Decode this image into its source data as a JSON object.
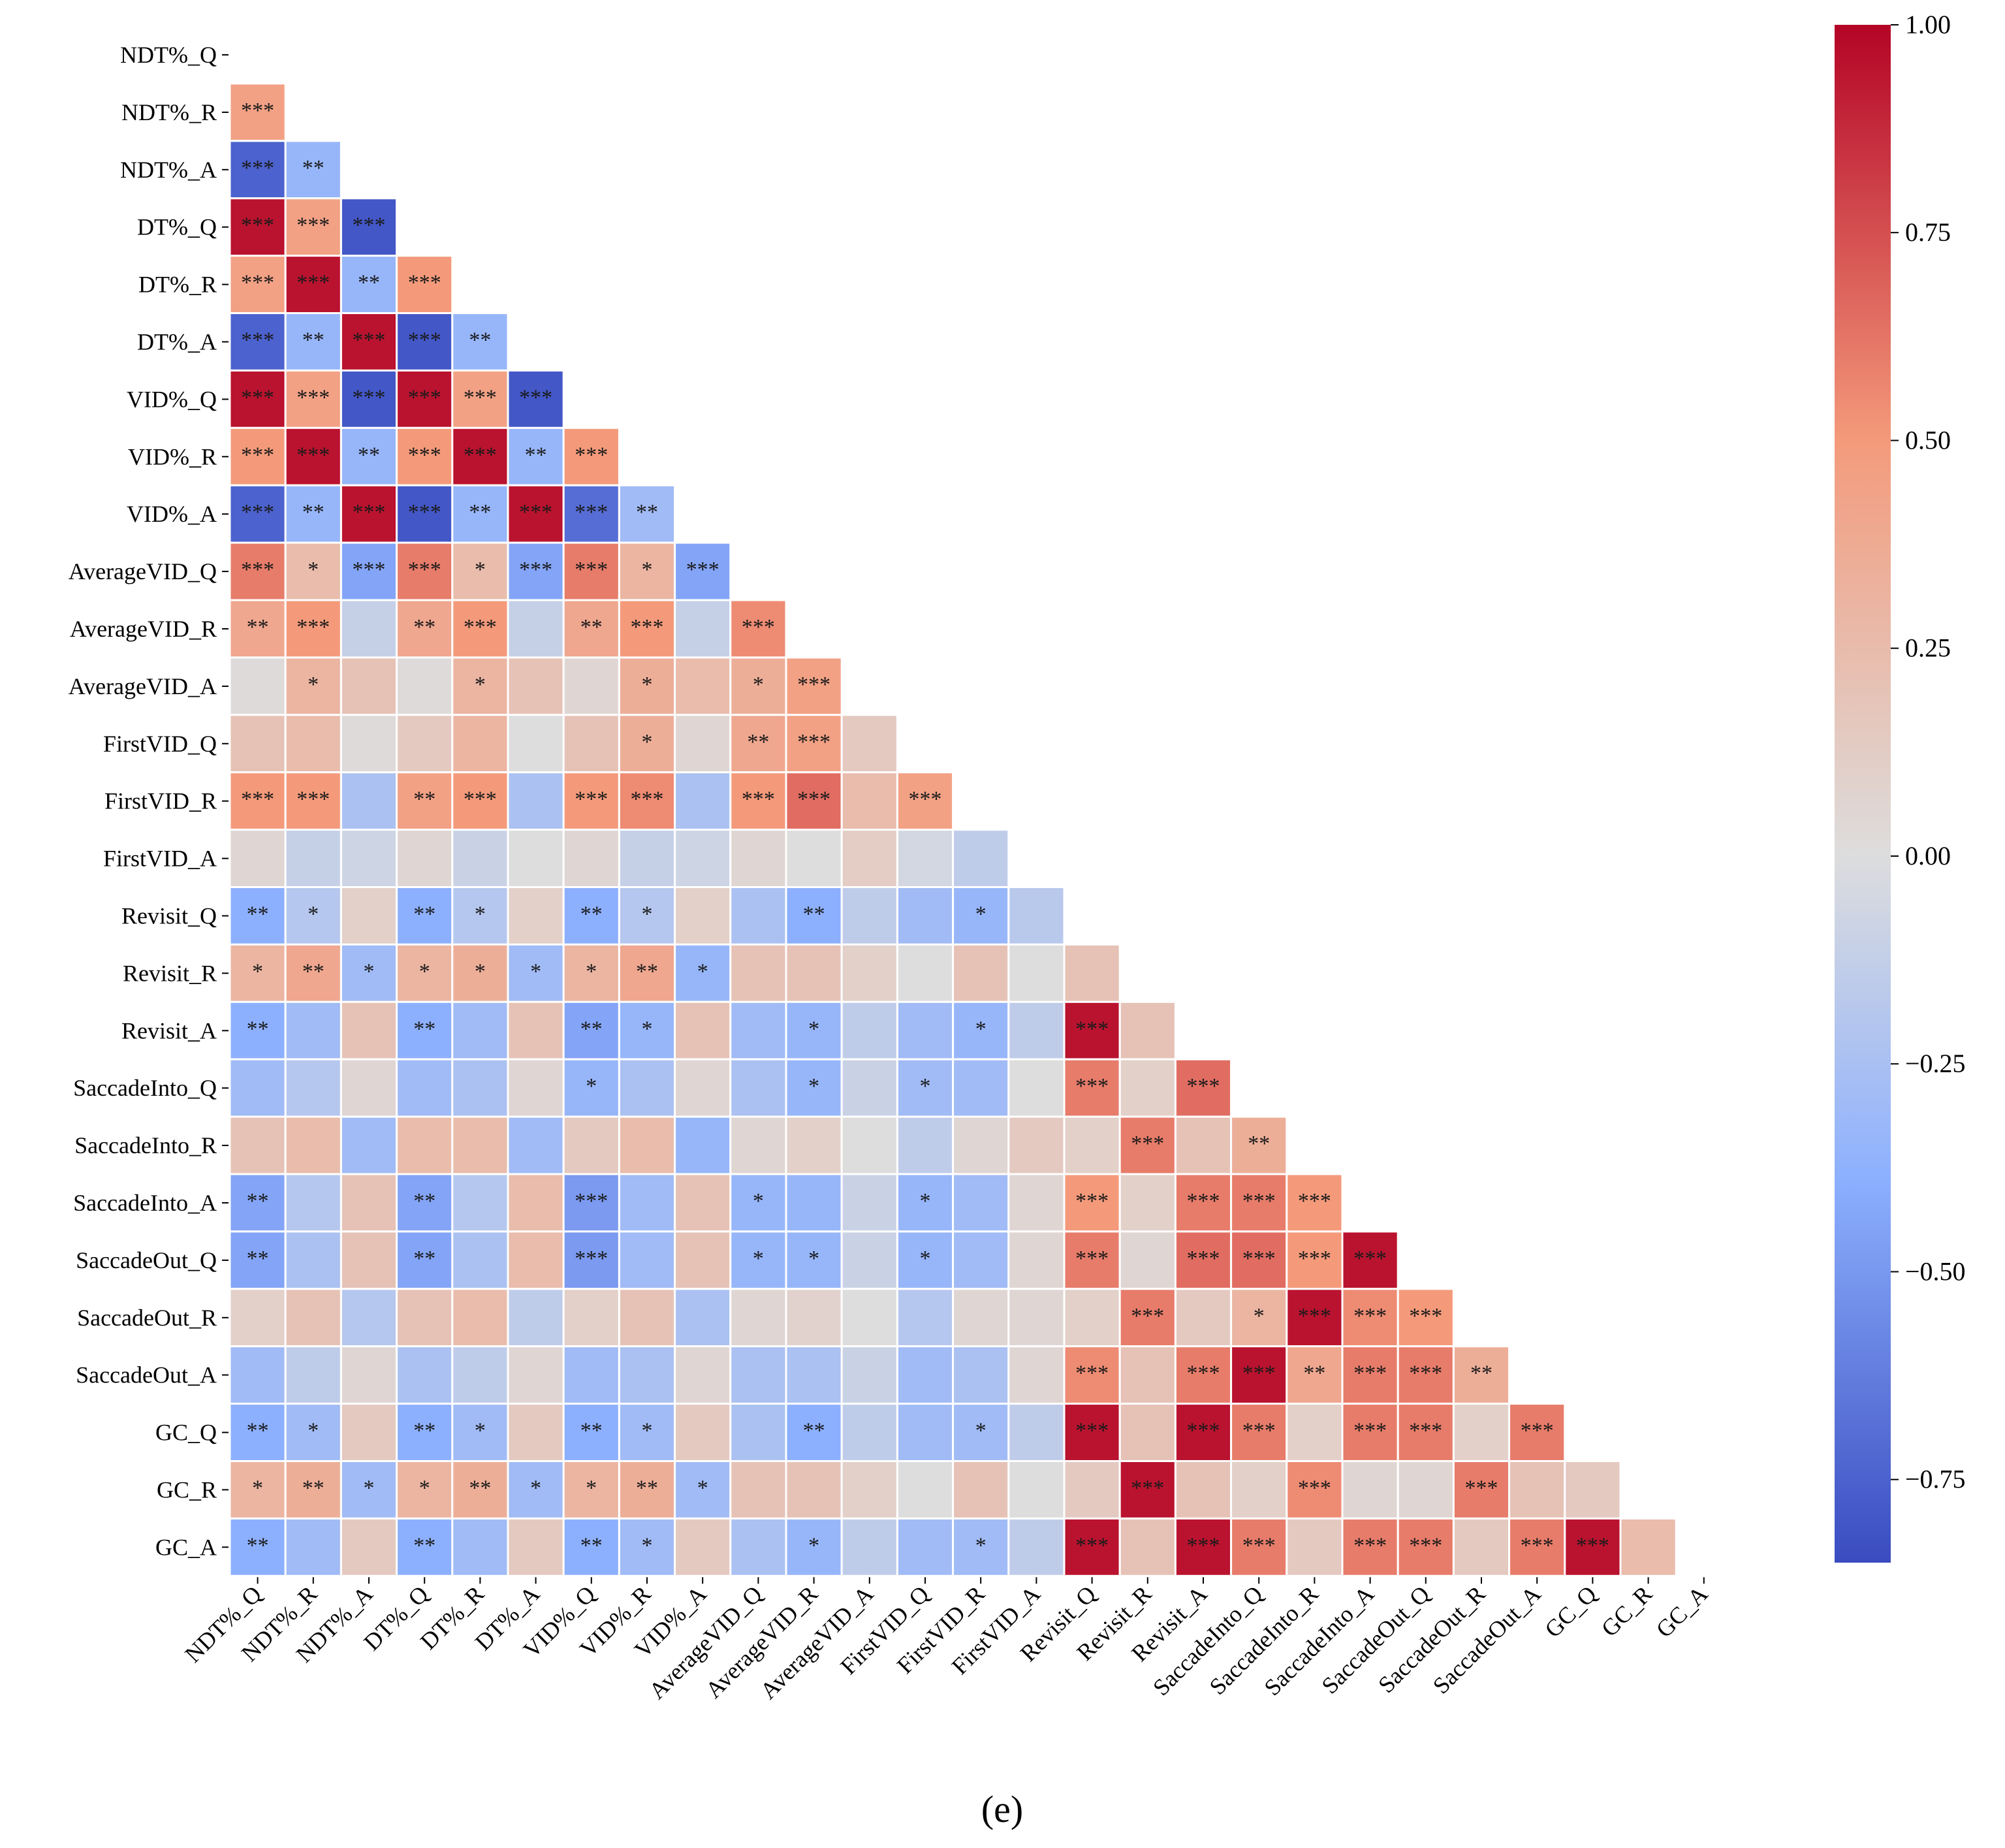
{
  "chart_data": {
    "type": "heatmap",
    "title": "",
    "caption": "(e)",
    "labels": [
      "NDT%_Q",
      "NDT%_R",
      "NDT%_A",
      "DT%_Q",
      "DT%_R",
      "DT%_A",
      "VID%_Q",
      "VID%_R",
      "VID%_A",
      "AverageVID_Q",
      "AverageVID_R",
      "AverageVID_A",
      "FirstVID_Q",
      "FirstVID_R",
      "FirstVID_A",
      "Revisit_Q",
      "Revisit_R",
      "Revisit_A",
      "SaccadeInto_Q",
      "SaccadeInto_R",
      "SaccadeInto_A",
      "SaccadeOut_Q",
      "SaccadeOut_R",
      "SaccadeOut_A",
      "GC_Q",
      "GC_R",
      "GC_A"
    ],
    "colorbar": {
      "vmin": -0.85,
      "vmax": 1.0,
      "ticks": [
        1.0,
        0.75,
        0.5,
        0.25,
        0.0,
        -0.25,
        -0.5,
        -0.75
      ],
      "tick_labels": [
        "1.00",
        "0.75",
        "0.50",
        "0.25",
        "0.00",
        "−0.25",
        "−0.50",
        "−0.75"
      ],
      "colors": [
        "#3a4cc0",
        "#8db0fe",
        "#dddddd",
        "#f49a7b",
        "#b40426"
      ]
    },
    "lower_triangle_values": [
      [],
      [
        0.45
      ],
      [
        -0.75,
        -0.35
      ],
      [
        0.95,
        0.45,
        -0.8
      ],
      [
        0.45,
        0.95,
        -0.35,
        0.5
      ],
      [
        -0.75,
        -0.35,
        0.95,
        -0.8,
        -0.35
      ],
      [
        0.95,
        0.45,
        -0.8,
        0.95,
        0.45,
        -0.8
      ],
      [
        0.5,
        0.95,
        -0.35,
        0.5,
        0.95,
        -0.35,
        0.5
      ],
      [
        -0.75,
        -0.35,
        0.95,
        -0.8,
        -0.35,
        0.95,
        -0.7,
        -0.3
      ],
      [
        0.6,
        0.25,
        -0.45,
        0.6,
        0.25,
        -0.45,
        0.6,
        0.3,
        -0.45
      ],
      [
        0.4,
        0.5,
        -0.12,
        0.4,
        0.5,
        -0.12,
        0.4,
        0.5,
        -0.12,
        0.55
      ],
      [
        0.02,
        0.3,
        0.2,
        0.02,
        0.3,
        0.2,
        0.05,
        0.35,
        0.25,
        0.35,
        0.45
      ],
      [
        0.2,
        0.25,
        0.02,
        0.15,
        0.3,
        0.0,
        0.2,
        0.35,
        0.05,
        0.4,
        0.45,
        0.15
      ],
      [
        0.5,
        0.5,
        -0.25,
        0.45,
        0.5,
        -0.25,
        0.5,
        0.55,
        -0.25,
        0.5,
        0.65,
        0.25,
        0.45
      ],
      [
        0.05,
        -0.12,
        -0.08,
        0.05,
        -0.1,
        0.0,
        0.05,
        -0.12,
        -0.08,
        0.05,
        0.0,
        0.12,
        -0.05,
        -0.15
      ],
      [
        -0.4,
        -0.2,
        0.1,
        -0.4,
        -0.2,
        0.1,
        -0.4,
        -0.2,
        0.1,
        -0.25,
        -0.4,
        -0.15,
        -0.3,
        -0.35,
        -0.18
      ],
      [
        0.3,
        0.4,
        -0.3,
        0.3,
        0.35,
        -0.3,
        0.3,
        0.4,
        -0.35,
        0.2,
        0.2,
        0.1,
        0.0,
        0.2,
        0.0,
        0.2
      ],
      [
        -0.4,
        -0.3,
        0.2,
        -0.4,
        -0.3,
        0.2,
        -0.45,
        -0.35,
        0.2,
        -0.3,
        -0.35,
        -0.15,
        -0.3,
        -0.35,
        -0.15,
        0.95,
        0.2
      ],
      [
        -0.3,
        -0.2,
        0.05,
        -0.3,
        -0.25,
        0.05,
        -0.35,
        -0.25,
        0.05,
        -0.25,
        -0.35,
        -0.1,
        -0.3,
        -0.3,
        0.0,
        0.6,
        0.1,
        0.65
      ],
      [
        0.2,
        0.25,
        -0.3,
        0.25,
        0.25,
        -0.3,
        0.15,
        0.25,
        -0.35,
        0.05,
        0.1,
        0.0,
        -0.15,
        0.05,
        0.15,
        0.1,
        0.6,
        0.2,
        0.35
      ],
      [
        -0.45,
        -0.2,
        0.2,
        -0.45,
        -0.2,
        0.25,
        -0.5,
        -0.3,
        0.2,
        -0.35,
        -0.35,
        -0.1,
        -0.35,
        -0.3,
        0.05,
        0.5,
        0.1,
        0.6,
        0.6,
        0.5
      ],
      [
        -0.45,
        -0.25,
        0.2,
        -0.45,
        -0.25,
        0.25,
        -0.5,
        -0.3,
        0.2,
        -0.35,
        -0.35,
        -0.1,
        -0.35,
        -0.3,
        0.05,
        0.6,
        0.05,
        0.65,
        0.65,
        0.5,
        0.95
      ],
      [
        0.1,
        0.2,
        -0.2,
        0.2,
        0.25,
        -0.15,
        0.1,
        0.2,
        -0.25,
        0.05,
        0.08,
        0.0,
        -0.2,
        0.05,
        0.05,
        0.1,
        0.6,
        0.15,
        0.3,
        0.95,
        0.55,
        0.5
      ],
      [
        -0.3,
        -0.15,
        0.05,
        -0.25,
        -0.15,
        0.05,
        -0.3,
        -0.25,
        0.05,
        -0.25,
        -0.25,
        -0.1,
        -0.3,
        -0.25,
        0.05,
        0.55,
        0.2,
        0.6,
        0.95,
        0.4,
        0.6,
        0.6,
        0.35
      ],
      [
        -0.4,
        -0.3,
        0.15,
        -0.4,
        -0.3,
        0.15,
        -0.4,
        -0.3,
        0.15,
        -0.25,
        -0.4,
        -0.15,
        -0.3,
        -0.3,
        -0.15,
        0.95,
        0.2,
        0.95,
        0.6,
        0.1,
        0.6,
        0.6,
        0.1,
        0.6
      ],
      [
        0.3,
        0.35,
        -0.3,
        0.3,
        0.35,
        -0.3,
        0.3,
        0.35,
        -0.3,
        0.2,
        0.2,
        0.1,
        0.0,
        0.2,
        0.0,
        0.15,
        0.95,
        0.2,
        0.1,
        0.55,
        0.05,
        0.05,
        0.6,
        0.2,
        0.15
      ],
      [
        -0.4,
        -0.3,
        0.15,
        -0.4,
        -0.3,
        0.15,
        -0.4,
        -0.3,
        0.15,
        -0.25,
        -0.35,
        -0.15,
        -0.3,
        -0.3,
        -0.15,
        0.95,
        0.2,
        0.95,
        0.6,
        0.15,
        0.6,
        0.6,
        0.15,
        0.6,
        0.95,
        0.25
      ]
    ],
    "significance_stars": [
      [],
      [
        "***"
      ],
      [
        "***",
        "**"
      ],
      [
        "***",
        "***",
        "***"
      ],
      [
        "***",
        "***",
        "**",
        "***"
      ],
      [
        "***",
        "**",
        "***",
        "***",
        "**"
      ],
      [
        "***",
        "***",
        "***",
        "***",
        "***",
        "***"
      ],
      [
        "***",
        "***",
        "**",
        "***",
        "***",
        "**",
        "***"
      ],
      [
        "***",
        "**",
        "***",
        "***",
        "**",
        "***",
        "***",
        "**"
      ],
      [
        "***",
        "*",
        "***",
        "***",
        "*",
        "***",
        "***",
        "*",
        "***"
      ],
      [
        "**",
        "***",
        "",
        "**",
        "***",
        "",
        "**",
        "***",
        "",
        "***"
      ],
      [
        "",
        "*",
        "",
        "",
        "*",
        "",
        "",
        "*",
        "",
        "*",
        "***"
      ],
      [
        "",
        "",
        "",
        "",
        "",
        "",
        "",
        "*",
        "",
        "**",
        "***",
        ""
      ],
      [
        "***",
        "***",
        "",
        "**",
        "***",
        "",
        "***",
        "***",
        "",
        "***",
        "***",
        "",
        "***"
      ],
      [
        "",
        "",
        "",
        "",
        "",
        "",
        "",
        "",
        "",
        "",
        "",
        "",
        "",
        ""
      ],
      [
        "**",
        "*",
        "",
        "**",
        "*",
        "",
        "**",
        "*",
        "",
        "",
        "**",
        "",
        "",
        "*",
        ""
      ],
      [
        "*",
        "**",
        "*",
        "*",
        "*",
        "*",
        "*",
        "**",
        "*",
        "",
        "",
        "",
        "",
        "",
        "",
        ""
      ],
      [
        "**",
        "",
        "",
        "**",
        "",
        "",
        "**",
        "*",
        "",
        "",
        "*",
        "",
        "",
        "*",
        "",
        "***",
        ""
      ],
      [
        "",
        "",
        "",
        "",
        "",
        "",
        "*",
        "",
        "",
        "",
        "*",
        "",
        "*",
        "",
        "",
        "***",
        "",
        "***"
      ],
      [
        "",
        "",
        "",
        "",
        "",
        "",
        "",
        "",
        "",
        "",
        "",
        "",
        "",
        "",
        "",
        "",
        "***",
        "",
        "**"
      ],
      [
        "**",
        "",
        "",
        "**",
        "",
        "",
        "***",
        "",
        "",
        "*",
        "",
        "",
        "*",
        "",
        "",
        "***",
        "",
        "***",
        "***",
        "***"
      ],
      [
        "**",
        "",
        "",
        "**",
        "",
        "",
        "***",
        "",
        "",
        "*",
        "*",
        "",
        "*",
        "",
        "",
        "***",
        "",
        "***",
        "***",
        "***",
        "***"
      ],
      [
        "",
        "",
        "",
        "",
        "",
        "",
        "",
        "",
        "",
        "",
        "",
        "",
        "",
        "",
        "",
        "",
        "***",
        "",
        "*",
        "***",
        "***",
        "***"
      ],
      [
        "",
        "",
        "",
        "",
        "",
        "",
        "",
        "",
        "",
        "",
        "",
        "",
        "",
        "",
        "",
        "***",
        "",
        "***",
        "***",
        "**",
        "***",
        "***",
        "**"
      ],
      [
        "**",
        "*",
        "",
        "**",
        "*",
        "",
        "**",
        "*",
        "",
        "",
        "**",
        "",
        "",
        "*",
        "",
        "***",
        "",
        "***",
        "***",
        "",
        "***",
        "***",
        "",
        "***"
      ],
      [
        "*",
        "**",
        "*",
        "*",
        "**",
        "*",
        "*",
        "**",
        "*",
        "",
        "",
        "",
        "",
        "",
        "",
        "",
        "***",
        "",
        "",
        "***",
        "",
        "",
        "***",
        "",
        ""
      ],
      [
        "**",
        "",
        "",
        "**",
        "",
        "",
        "**",
        "*",
        "",
        "",
        "*",
        "",
        "",
        "*",
        "",
        "***",
        "",
        "***",
        "***",
        "",
        "***",
        "***",
        "",
        "***",
        "***",
        ""
      ]
    ]
  }
}
